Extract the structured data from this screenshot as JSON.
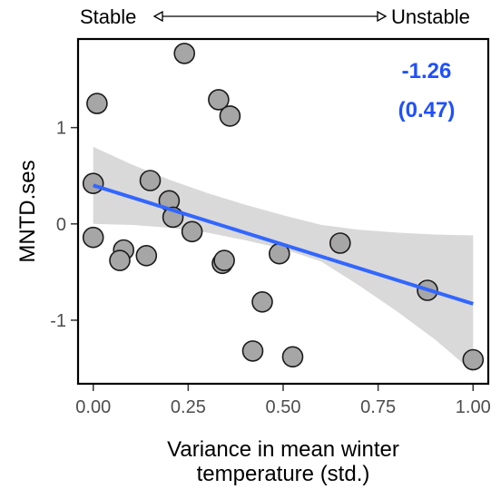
{
  "chart_data": {
    "type": "scatter",
    "xlabel_line1": "Variance in mean winter",
    "xlabel_line2": "temperature (std.)",
    "ylabel": "MNTD.ses",
    "xlim": [
      -0.04,
      1.04
    ],
    "ylim": [
      -1.66,
      1.92
    ],
    "x_ticks": [
      0.0,
      0.25,
      0.5,
      0.75,
      1.0
    ],
    "x_tick_labels": [
      "0.00",
      "0.25",
      "0.50",
      "0.75",
      "1.00"
    ],
    "y_ticks": [
      -1,
      0,
      1
    ],
    "y_tick_labels": [
      "-1",
      "0",
      "1"
    ],
    "stability_scale": {
      "left": "Stable",
      "right": "Unstable"
    },
    "annotation": {
      "estimate": "-1.26",
      "se": "(0.47)"
    },
    "points": [
      {
        "x": 0.24,
        "y": 1.77
      },
      {
        "x": 0.33,
        "y": 1.29
      },
      {
        "x": 0.36,
        "y": 1.12
      },
      {
        "x": 0.01,
        "y": 1.25
      },
      {
        "x": 0.0,
        "y": 0.42
      },
      {
        "x": 0.15,
        "y": 0.45
      },
      {
        "x": 0.2,
        "y": 0.24
      },
      {
        "x": 0.21,
        "y": 0.07
      },
      {
        "x": 0.26,
        "y": -0.08
      },
      {
        "x": 0.0,
        "y": -0.14
      },
      {
        "x": 0.08,
        "y": -0.27
      },
      {
        "x": 0.07,
        "y": -0.38
      },
      {
        "x": 0.14,
        "y": -0.33
      },
      {
        "x": 0.34,
        "y": -0.41
      },
      {
        "x": 0.345,
        "y": -0.38
      },
      {
        "x": 0.49,
        "y": -0.31
      },
      {
        "x": 0.65,
        "y": -0.2
      },
      {
        "x": 0.445,
        "y": -0.81
      },
      {
        "x": 0.42,
        "y": -1.32
      },
      {
        "x": 0.525,
        "y": -1.38
      },
      {
        "x": 0.88,
        "y": -0.69
      },
      {
        "x": 1.0,
        "y": -1.41
      }
    ],
    "fit_line": {
      "x": [
        0.0,
        1.0
      ],
      "y": [
        0.4,
        -0.83
      ]
    },
    "confidence_band": {
      "x": [
        0.0,
        0.1,
        0.2,
        0.3,
        0.4,
        0.5,
        0.6,
        0.7,
        0.8,
        0.9,
        1.0
      ],
      "upper": [
        0.8,
        0.62,
        0.46,
        0.32,
        0.2,
        0.09,
        -0.01,
        -0.06,
        -0.09,
        -0.11,
        -0.12
      ],
      "lower": [
        0.0,
        -0.01,
        -0.04,
        -0.09,
        -0.17,
        -0.26,
        -0.39,
        -0.64,
        -0.91,
        -1.2,
        -1.54
      ]
    },
    "colors": {
      "point_fill": "#a6a6a6",
      "point_stroke": "#1a1a1a",
      "fit_line": "#3366ff",
      "band": "#d9d9d9",
      "annotation": "#1f4fff"
    }
  }
}
